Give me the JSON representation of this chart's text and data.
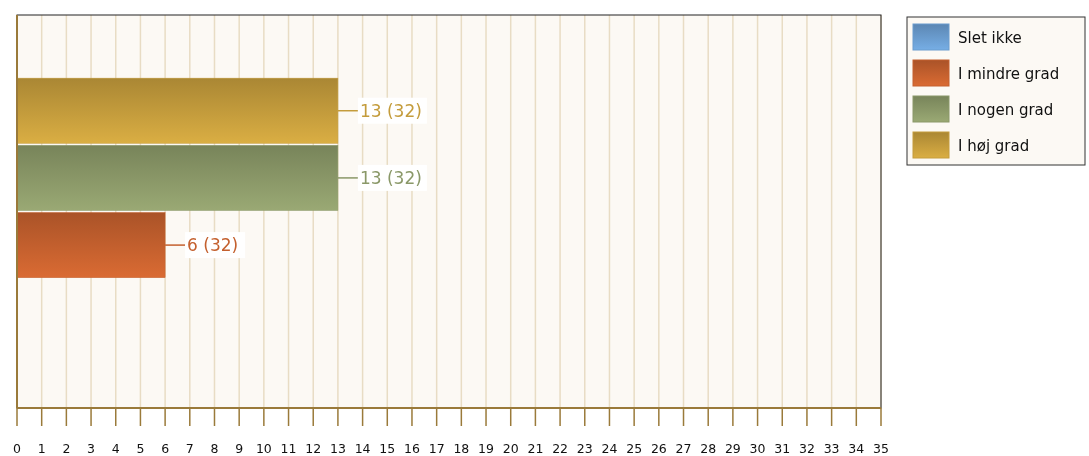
{
  "chart_data": {
    "type": "bar",
    "orientation": "horizontal",
    "categories": [
      null
    ],
    "series": [
      {
        "name": "Slet ikke",
        "color": "#6a9cce",
        "values": [
          0
        ],
        "value_labels": [
          null
        ]
      },
      {
        "name": "I mindre grad",
        "color": "#c4602e",
        "values": [
          6
        ],
        "value_labels": [
          "6 (32)"
        ]
      },
      {
        "name": "I nogen grad",
        "color": "#8a9868",
        "values": [
          13
        ],
        "value_labels": [
          "13 (32)"
        ]
      },
      {
        "name": "I høj grad",
        "color": "#c49c3c",
        "values": [
          13
        ],
        "value_labels": [
          "13 (32)"
        ]
      }
    ],
    "xlim": [
      0,
      35
    ],
    "xticks": [
      0,
      1,
      2,
      3,
      4,
      5,
      6,
      7,
      8,
      9,
      10,
      11,
      12,
      13,
      14,
      15,
      16,
      17,
      18,
      19,
      20,
      21,
      22,
      23,
      24,
      25,
      26,
      27,
      28,
      29,
      30,
      31,
      32,
      33,
      34,
      35
    ],
    "grid": "x",
    "legend": "top right"
  }
}
